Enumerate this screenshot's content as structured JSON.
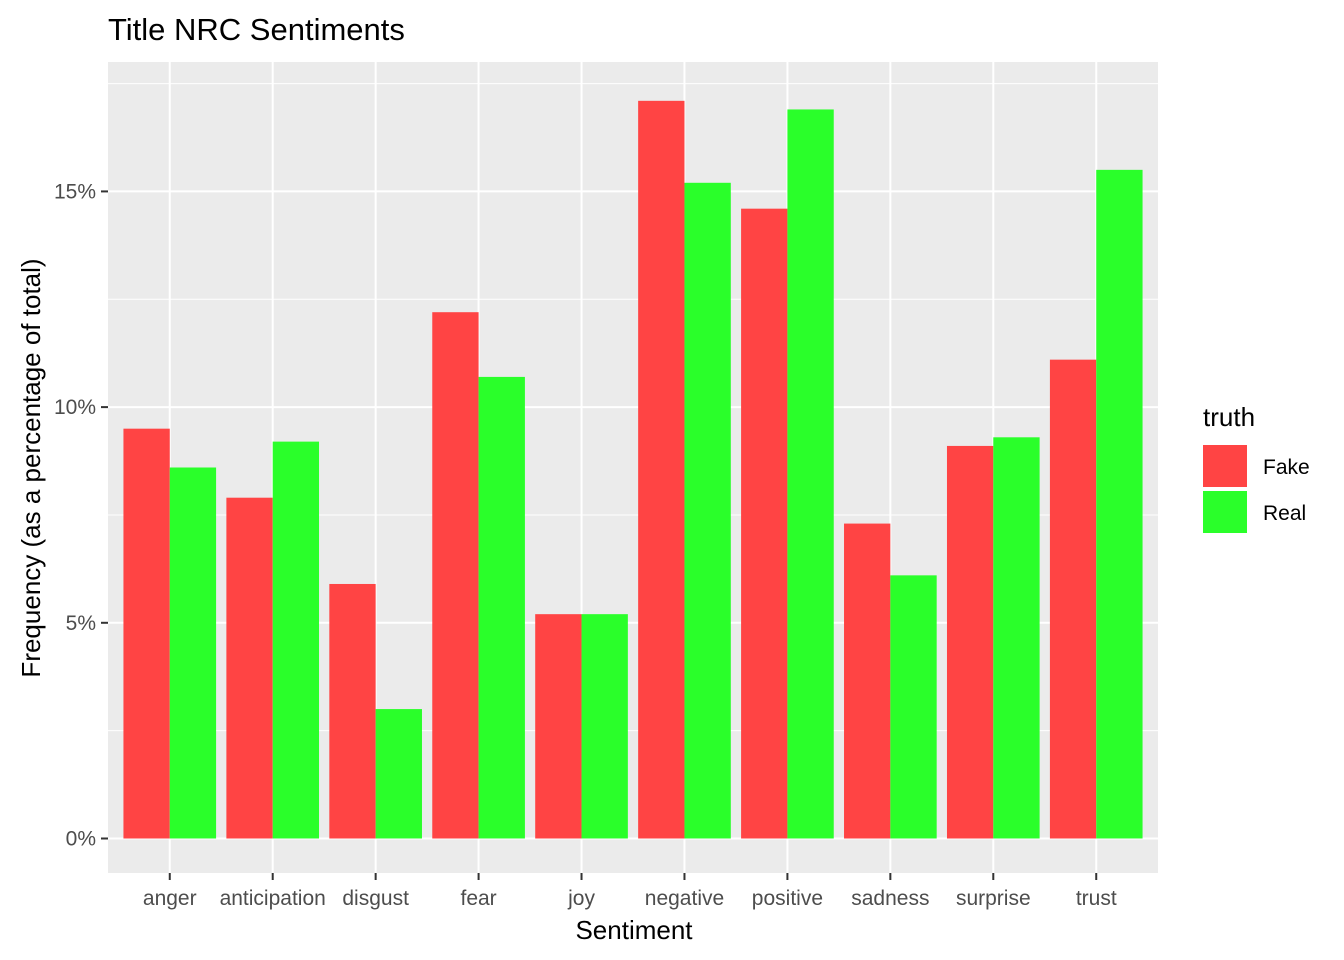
{
  "chart_data": {
    "type": "bar",
    "title": "Title NRC Sentiments",
    "xlabel": "Sentiment",
    "ylabel": "Frequency (as a percentage of total)",
    "categories": [
      "anger",
      "anticipation",
      "disgust",
      "fear",
      "joy",
      "negative",
      "positive",
      "sadness",
      "surprise",
      "trust"
    ],
    "series": [
      {
        "name": "Fake",
        "color": "#FF4444",
        "values": [
          9.5,
          7.9,
          5.9,
          12.2,
          5.2,
          17.1,
          14.6,
          7.3,
          9.1,
          11.1
        ]
      },
      {
        "name": "Real",
        "color": "#2AFF2A",
        "values": [
          8.6,
          9.2,
          3.0,
          10.7,
          5.2,
          15.2,
          16.9,
          6.1,
          9.3,
          15.5
        ]
      }
    ],
    "ylim": [
      -0.8,
      18.0
    ],
    "yticks": [
      0,
      5,
      10,
      15
    ],
    "ytick_labels": [
      "0%",
      "5%",
      "10%",
      "15%"
    ],
    "legend": {
      "title": "truth",
      "placement": "right"
    },
    "grid": true,
    "panel_background": "#EBEBEB",
    "grid_color": "#FFFFFF"
  }
}
